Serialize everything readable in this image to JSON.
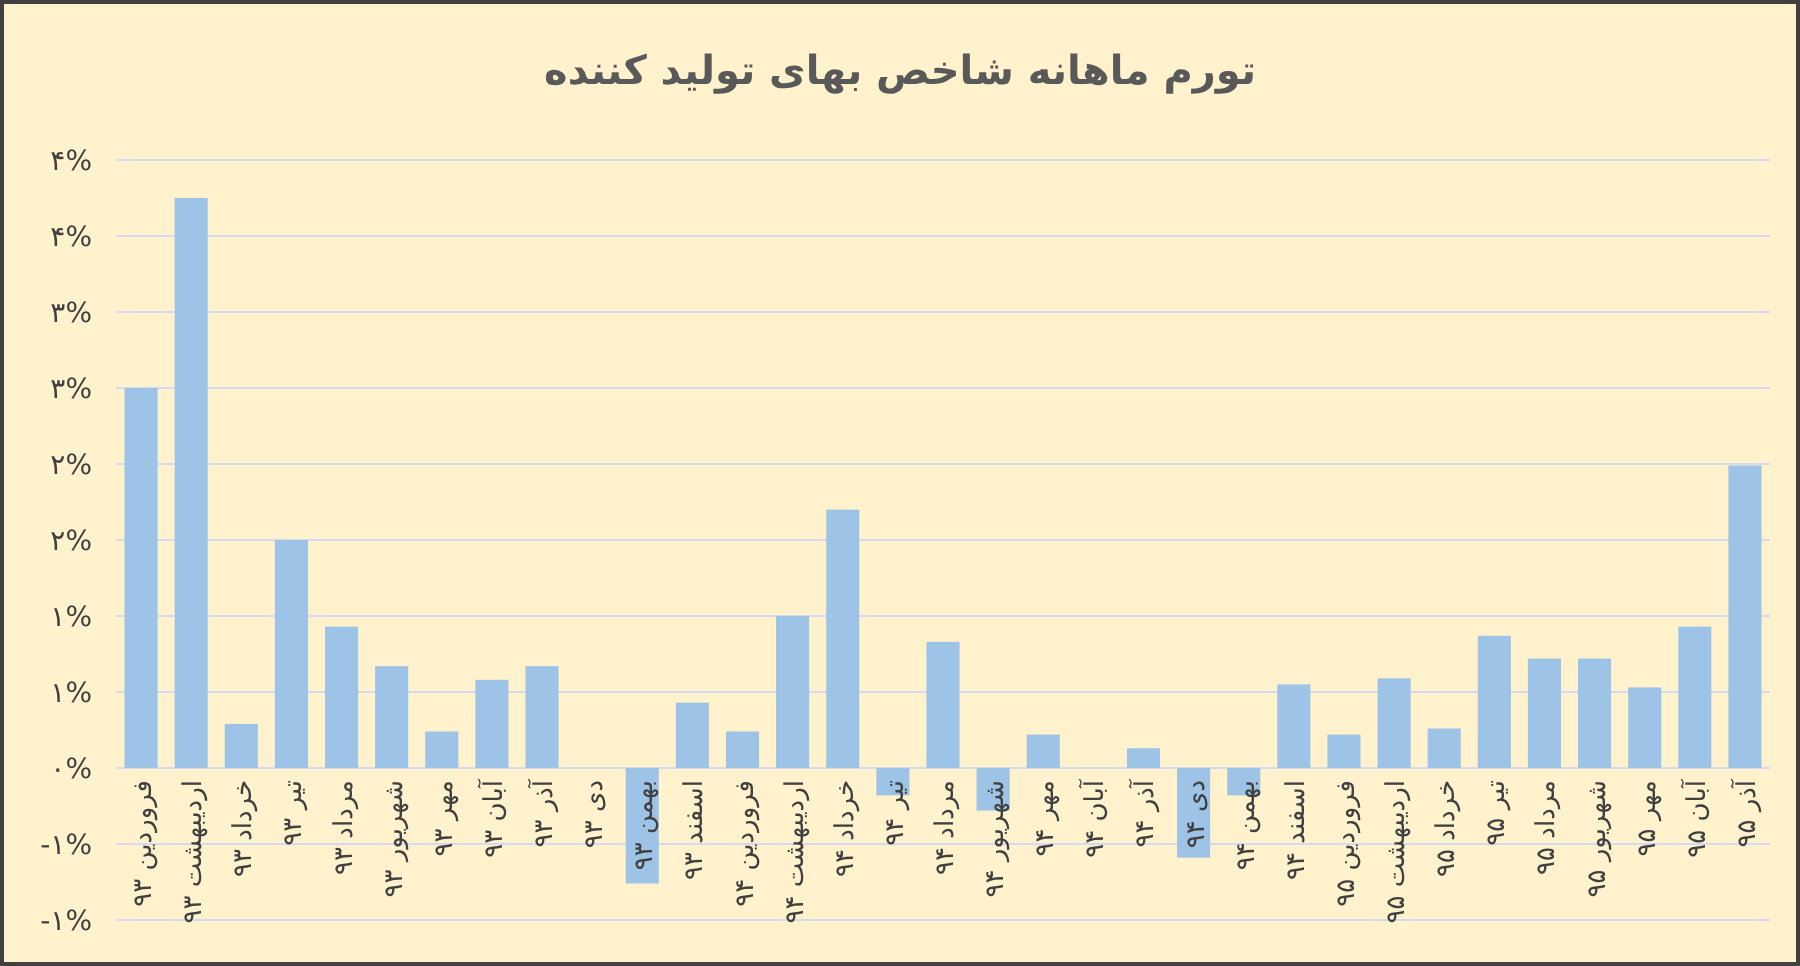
{
  "chart_data": {
    "type": "bar",
    "title": "تورم ماهانه شاخص بهای تولید کننده",
    "categories": [
      "فروردین ۹۳",
      "اردیبهشت ۹۳",
      "خرداد ۹۳",
      "تیر ۹۳",
      "مرداد ۹۳",
      "شهریور ۹۳",
      "مهر ۹۳",
      "آبان ۹۳",
      "آذر ۹۳",
      "دی ۹۳",
      "بهمن ۹۳",
      "اسفند ۹۳",
      "فروردین ۹۴",
      "اردیبهشت ۹۴",
      "خرداد ۹۴",
      "تیر ۹۴",
      "مرداد ۹۴",
      "شهریور ۹۴",
      "مهر ۹۴",
      "آبان ۹۴",
      "آذر ۹۴",
      "دی ۹۴",
      "بهمن ۹۴",
      "اسفند ۹۴",
      "فروردین ۹۵",
      "اردیبهشت ۹۵",
      "خرداد ۹۵",
      "تیر ۹۵",
      "مرداد ۹۵",
      "شهریور ۹۵",
      "مهر ۹۵",
      "آبان ۹۵",
      "آذر ۹۵"
    ],
    "values": [
      2.5,
      3.75,
      0.29,
      1.5,
      0.93,
      0.67,
      0.24,
      0.58,
      0.67,
      0,
      -0.76,
      0.43,
      0.24,
      1.0,
      1.7,
      -0.18,
      0.83,
      -0.28,
      0.22,
      0,
      0.13,
      -0.59,
      -0.18,
      0.55,
      0.22,
      0.59,
      0.26,
      0.87,
      0.72,
      0.72,
      0.53,
      0.93,
      1.99
    ],
    "color": "#9dc3e6",
    "ylim": [
      -1,
      4
    ],
    "yticks": [
      {
        "value": -1,
        "label": "-۱%"
      },
      {
        "value": -0.5,
        "label": "-۱%"
      },
      {
        "value": 0,
        "label": "۰%"
      },
      {
        "value": 0.5,
        "label": "۱%"
      },
      {
        "value": 1,
        "label": "۱%"
      },
      {
        "value": 1.5,
        "label": "۲%"
      },
      {
        "value": 2,
        "label": "۲%"
      },
      {
        "value": 2.5,
        "label": "۳%"
      },
      {
        "value": 3,
        "label": "۳%"
      },
      {
        "value": 3.5,
        "label": "۴%"
      },
      {
        "value": 4,
        "label": "۴%"
      }
    ],
    "grid": "y"
  }
}
